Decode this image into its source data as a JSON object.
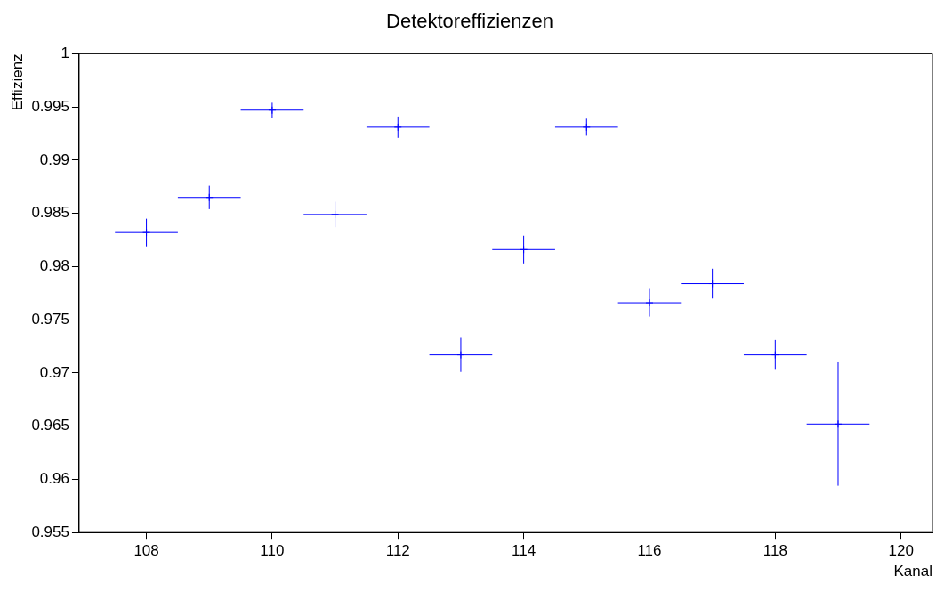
{
  "chart_data": {
    "type": "scatter",
    "title": "Detektoreffizienzen",
    "xlabel": "Kanal",
    "ylabel": "Effizienz",
    "x": [
      108,
      109,
      110,
      111,
      112,
      113,
      114,
      115,
      116,
      117,
      118,
      119
    ],
    "series": [
      {
        "color": "#0000ff",
        "values": [
          0.9832,
          0.9865,
          0.9947,
          0.9849,
          0.9931,
          0.9717,
          0.9816,
          0.9931,
          0.9766,
          0.9784,
          0.9717,
          0.9652
        ],
        "errors": [
          0.0013,
          0.0011,
          0.0007,
          0.0012,
          0.001,
          0.0016,
          0.0013,
          0.0008,
          0.0013,
          0.0014,
          0.0014,
          0.0058
        ],
        "xerrors": [
          0.5,
          0.5,
          0.5,
          0.5,
          0.5,
          0.5,
          0.5,
          0.5,
          0.5,
          0.5,
          0.5,
          0.5
        ]
      }
    ],
    "marker": "cross",
    "xlim": [
      106.93,
      120.5
    ],
    "xticks": [
      108,
      110,
      112,
      114,
      116,
      118,
      120
    ],
    "ylim": [
      0.955,
      1
    ],
    "yticks": [
      0.955,
      0.96,
      0.965,
      0.97,
      0.975,
      0.98,
      0.985,
      0.99,
      0.995,
      1
    ],
    "grid": false,
    "legend": false
  }
}
